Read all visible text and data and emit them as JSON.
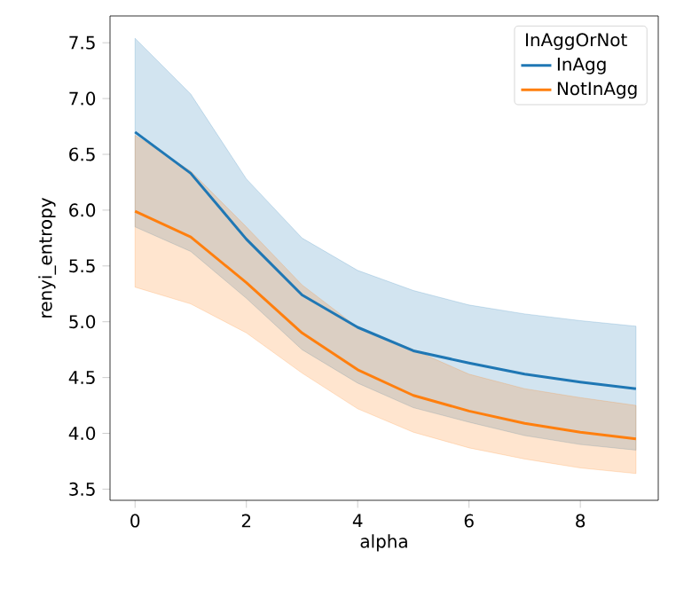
{
  "chart_data": {
    "type": "line",
    "xlabel": "alpha",
    "ylabel": "renyi_entropy",
    "legend_title": "InAggOrNot",
    "legend": "top right",
    "grid": false,
    "x": [
      0,
      1,
      2,
      3,
      4,
      5,
      6,
      7,
      8,
      9
    ],
    "xlim": [
      -0.45,
      9.4
    ],
    "ylim": [
      3.4,
      7.74
    ],
    "xticks": [
      0,
      2,
      4,
      6,
      8
    ],
    "yticks": [
      3.5,
      {
        "value": 4.0,
        "label": "4.0"
      },
      4.5,
      {
        "value": 5.0,
        "label": "5.0"
      },
      5.5,
      {
        "value": 6.0,
        "label": "6.0"
      },
      6.5,
      {
        "value": 7.0,
        "label": "7.0"
      },
      7.5
    ],
    "series": [
      {
        "name": "InAgg",
        "color": "#1f77b4",
        "values": [
          6.7,
          6.33,
          5.74,
          5.24,
          4.95,
          4.74,
          4.63,
          4.53,
          4.46,
          4.4
        ],
        "upper": [
          7.54,
          7.04,
          6.28,
          5.75,
          5.46,
          5.28,
          5.15,
          5.07,
          5.01,
          4.96
        ],
        "lower": [
          5.85,
          5.63,
          5.21,
          4.75,
          4.45,
          4.23,
          4.1,
          3.98,
          3.9,
          3.85
        ]
      },
      {
        "name": "NotInAgg",
        "color": "#ff7f0e",
        "values": [
          5.99,
          5.76,
          5.35,
          4.9,
          4.57,
          4.34,
          4.2,
          4.09,
          4.01,
          3.95
        ],
        "upper": [
          6.67,
          6.35,
          5.85,
          5.33,
          4.95,
          4.75,
          4.53,
          4.4,
          4.32,
          4.25
        ],
        "lower": [
          5.31,
          5.16,
          4.9,
          4.54,
          4.22,
          4.01,
          3.87,
          3.77,
          3.69,
          3.64
        ]
      }
    ]
  }
}
